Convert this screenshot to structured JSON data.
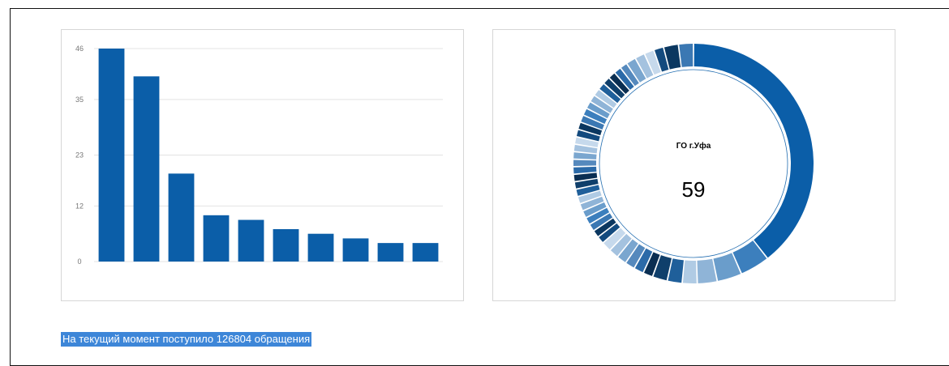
{
  "chart_data": [
    {
      "type": "bar",
      "title": "",
      "xlabel": "",
      "ylabel": "",
      "ylim": [
        0,
        46
      ],
      "yticks": [
        0,
        12,
        23,
        35,
        46
      ],
      "values": [
        46,
        40,
        19,
        10,
        9,
        7,
        6,
        5,
        4,
        4
      ],
      "grid": true,
      "color": "#0b5ea8"
    },
    {
      "type": "pie",
      "hole": true,
      "center_label": "ГО г.Уфа",
      "center_value": "59",
      "values": [
        59,
        6,
        5,
        4,
        3,
        3,
        3,
        2,
        2,
        2,
        2,
        2,
        2,
        1.5,
        1.5,
        1.5,
        1.5,
        1.5,
        1.5,
        1.5,
        1.5,
        1.5,
        1.5,
        1.5,
        1.5,
        1.5,
        1.5,
        1.5,
        1.5,
        1.5,
        1.5,
        1.5,
        1.5,
        1.5,
        1.5,
        1.5,
        1.5,
        1.5,
        1.5,
        1.5,
        2,
        2,
        2,
        2,
        3,
        3
      ],
      "colors": [
        "#0b5ea8",
        "#3c7fbd",
        "#5b94c7",
        "#87afd4",
        "#b0cbe4"
      ]
    }
  ],
  "footer": {
    "text": "На текущий момент поступило 126804 обращения"
  }
}
